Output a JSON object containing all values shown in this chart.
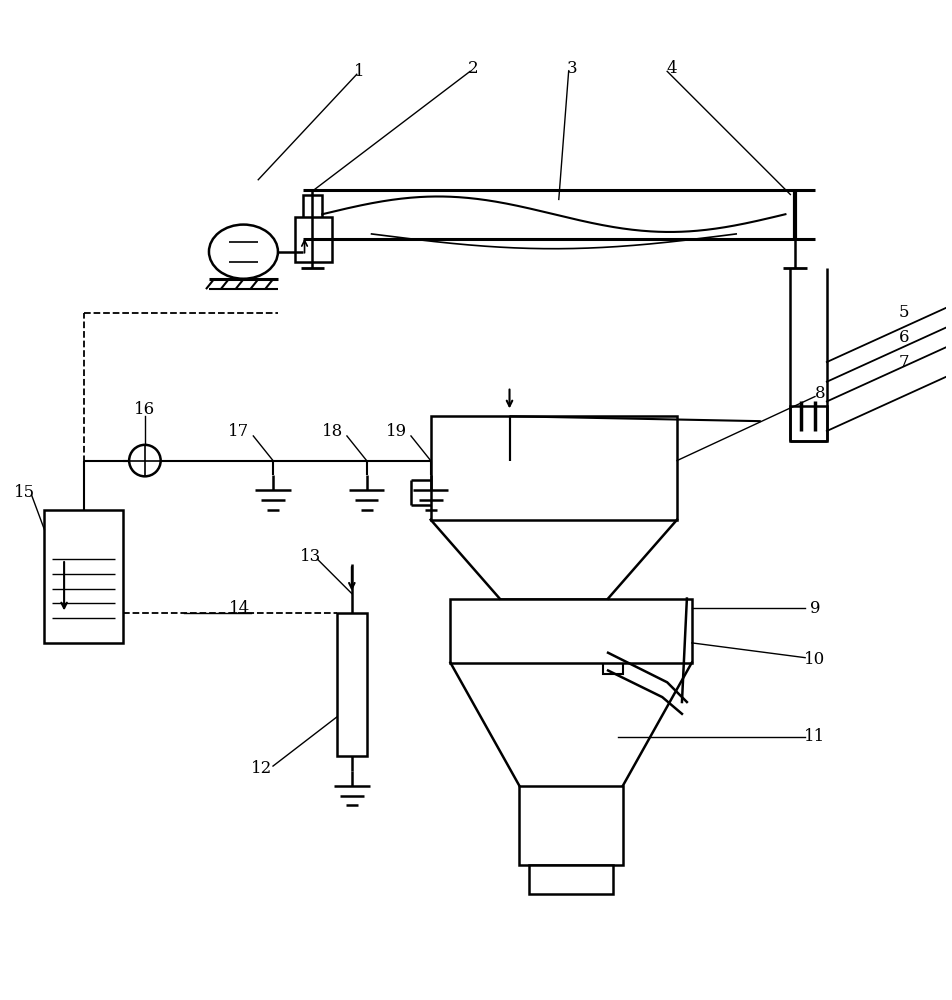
{
  "background_color": "#ffffff",
  "line_color": "#000000",
  "figure_width": 9.53,
  "figure_height": 10.0,
  "label_fontsize": 12
}
